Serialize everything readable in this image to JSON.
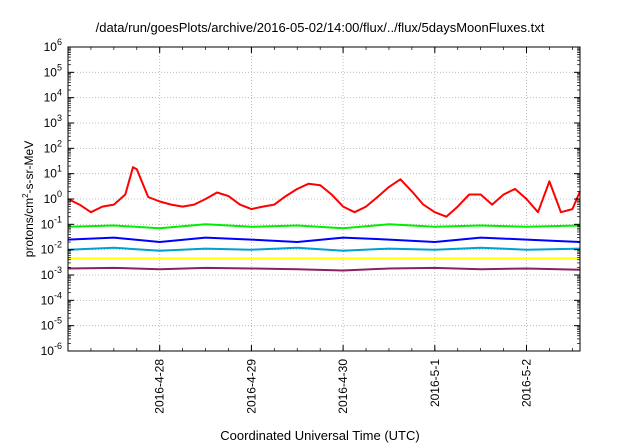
{
  "chart_data": {
    "type": "line",
    "title": "/data/run/goesPlots/archive/2016-05-02/14:00/flux/../flux/5daysMoonFluxes.txt",
    "xlabel": "Coordinated Universal Time (UTC)",
    "ylabel_parts": [
      "protons/cm",
      "2",
      "-s-sr-MeV"
    ],
    "y_scale": "log",
    "ylim": [
      1e-06,
      1000000.0
    ],
    "y_ticks": [
      {
        "base": "10",
        "exp": "-6",
        "value": 1e-06
      },
      {
        "base": "10",
        "exp": "-5",
        "value": 1e-05
      },
      {
        "base": "10",
        "exp": "-4",
        "value": 0.0001
      },
      {
        "base": "10",
        "exp": "-3",
        "value": 0.001
      },
      {
        "base": "10",
        "exp": "-2",
        "value": 0.01
      },
      {
        "base": "10",
        "exp": "-1",
        "value": 0.1
      },
      {
        "base": "10",
        "exp": "0",
        "value": 1
      },
      {
        "base": "10",
        "exp": "1",
        "value": 10
      },
      {
        "base": "10",
        "exp": "2",
        "value": 100
      },
      {
        "base": "10",
        "exp": "3",
        "value": 1000
      },
      {
        "base": "10",
        "exp": "4",
        "value": 10000
      },
      {
        "base": "10",
        "exp": "5",
        "value": 100000
      },
      {
        "base": "10",
        "exp": "6",
        "value": 1000000
      }
    ],
    "x_ticks": [
      "2016-4-28",
      "2016-4-29",
      "2016-4-30",
      "2016-5-1",
      "2016-5-2"
    ],
    "xlim": [
      "2016-04-27T00:00",
      "2016-05-02T14:00"
    ],
    "grid": true,
    "legend": "none",
    "series": [
      {
        "color": "#ff0000",
        "x": [
          "2016-04-27T00:00",
          "2016-04-27T03:00",
          "2016-04-27T06:00",
          "2016-04-27T09:00",
          "2016-04-27T12:00",
          "2016-04-27T15:00",
          "2016-04-27T17:00",
          "2016-04-27T18:00",
          "2016-04-27T21:00",
          "2016-04-28T00:00",
          "2016-04-28T03:00",
          "2016-04-28T06:00",
          "2016-04-28T09:00",
          "2016-04-28T12:00",
          "2016-04-28T15:00",
          "2016-04-28T18:00",
          "2016-04-28T21:00",
          "2016-04-29T00:00",
          "2016-04-29T03:00",
          "2016-04-29T06:00",
          "2016-04-29T09:00",
          "2016-04-29T12:00",
          "2016-04-29T15:00",
          "2016-04-29T18:00",
          "2016-04-29T21:00",
          "2016-04-30T00:00",
          "2016-04-30T03:00",
          "2016-04-30T06:00",
          "2016-04-30T09:00",
          "2016-04-30T12:00",
          "2016-04-30T15:00",
          "2016-04-30T18:00",
          "2016-04-30T21:00",
          "2016-05-01T00:00",
          "2016-05-01T03:00",
          "2016-05-01T06:00",
          "2016-05-01T09:00",
          "2016-05-01T12:00",
          "2016-05-01T15:00",
          "2016-05-01T18:00",
          "2016-05-01T21:00",
          "2016-05-02T00:00",
          "2016-05-02T03:00",
          "2016-05-02T06:00",
          "2016-05-02T09:00",
          "2016-05-02T12:00",
          "2016-05-02T14:00"
        ],
        "y": [
          1.0,
          0.6,
          0.3,
          0.5,
          0.6,
          1.5,
          18,
          15,
          1.2,
          0.8,
          0.6,
          0.5,
          0.6,
          1.0,
          1.8,
          1.3,
          0.6,
          0.4,
          0.5,
          0.6,
          1.3,
          2.5,
          4.0,
          3.5,
          1.5,
          0.5,
          0.3,
          0.5,
          1.2,
          3.0,
          6.0,
          2.0,
          0.6,
          0.3,
          0.2,
          0.5,
          1.5,
          1.5,
          0.6,
          1.5,
          2.5,
          1.0,
          0.3,
          5.0,
          0.3,
          0.4,
          2.0
        ]
      },
      {
        "color": "#00ee00",
        "x": [
          "2016-04-27T00:00",
          "2016-04-27T12:00",
          "2016-04-28T00:00",
          "2016-04-28T12:00",
          "2016-04-29T00:00",
          "2016-04-29T12:00",
          "2016-04-30T00:00",
          "2016-04-30T12:00",
          "2016-05-01T00:00",
          "2016-05-01T12:00",
          "2016-05-02T00:00",
          "2016-05-02T14:00"
        ],
        "y": [
          0.08,
          0.09,
          0.07,
          0.1,
          0.08,
          0.09,
          0.07,
          0.1,
          0.08,
          0.09,
          0.08,
          0.09
        ]
      },
      {
        "color": "#0000ff",
        "x": [
          "2016-04-27T00:00",
          "2016-04-27T12:00",
          "2016-04-28T00:00",
          "2016-04-28T12:00",
          "2016-04-29T00:00",
          "2016-04-29T12:00",
          "2016-04-30T00:00",
          "2016-04-30T12:00",
          "2016-05-01T00:00",
          "2016-05-01T12:00",
          "2016-05-02T00:00",
          "2016-05-02T14:00"
        ],
        "y": [
          0.025,
          0.03,
          0.02,
          0.03,
          0.025,
          0.02,
          0.03,
          0.025,
          0.02,
          0.03,
          0.025,
          0.02
        ]
      },
      {
        "color": "#00a0d0",
        "x": [
          "2016-04-27T00:00",
          "2016-04-27T12:00",
          "2016-04-28T00:00",
          "2016-04-28T12:00",
          "2016-04-29T00:00",
          "2016-04-29T12:00",
          "2016-04-30T00:00",
          "2016-04-30T12:00",
          "2016-05-01T00:00",
          "2016-05-01T12:00",
          "2016-05-02T00:00",
          "2016-05-02T14:00"
        ],
        "y": [
          0.01,
          0.012,
          0.009,
          0.011,
          0.01,
          0.012,
          0.009,
          0.011,
          0.01,
          0.012,
          0.01,
          0.011
        ]
      },
      {
        "color": "#ffff00",
        "x": [
          "2016-04-27T00:00",
          "2016-04-28T00:00",
          "2016-04-29T00:00",
          "2016-04-30T00:00",
          "2016-05-01T00:00",
          "2016-05-02T00:00",
          "2016-05-02T14:00"
        ],
        "y": [
          0.0045,
          0.0045,
          0.0045,
          0.0045,
          0.0045,
          0.0045,
          0.0045
        ]
      },
      {
        "color": "#8b2060",
        "x": [
          "2016-04-27T00:00",
          "2016-04-27T12:00",
          "2016-04-28T00:00",
          "2016-04-28T12:00",
          "2016-04-29T00:00",
          "2016-04-29T12:00",
          "2016-04-30T00:00",
          "2016-04-30T12:00",
          "2016-05-01T00:00",
          "2016-05-01T12:00",
          "2016-05-02T00:00",
          "2016-05-02T14:00"
        ],
        "y": [
          0.0018,
          0.0019,
          0.0017,
          0.0019,
          0.0018,
          0.0017,
          0.0015,
          0.0018,
          0.0019,
          0.0017,
          0.0018,
          0.0016
        ]
      }
    ]
  }
}
